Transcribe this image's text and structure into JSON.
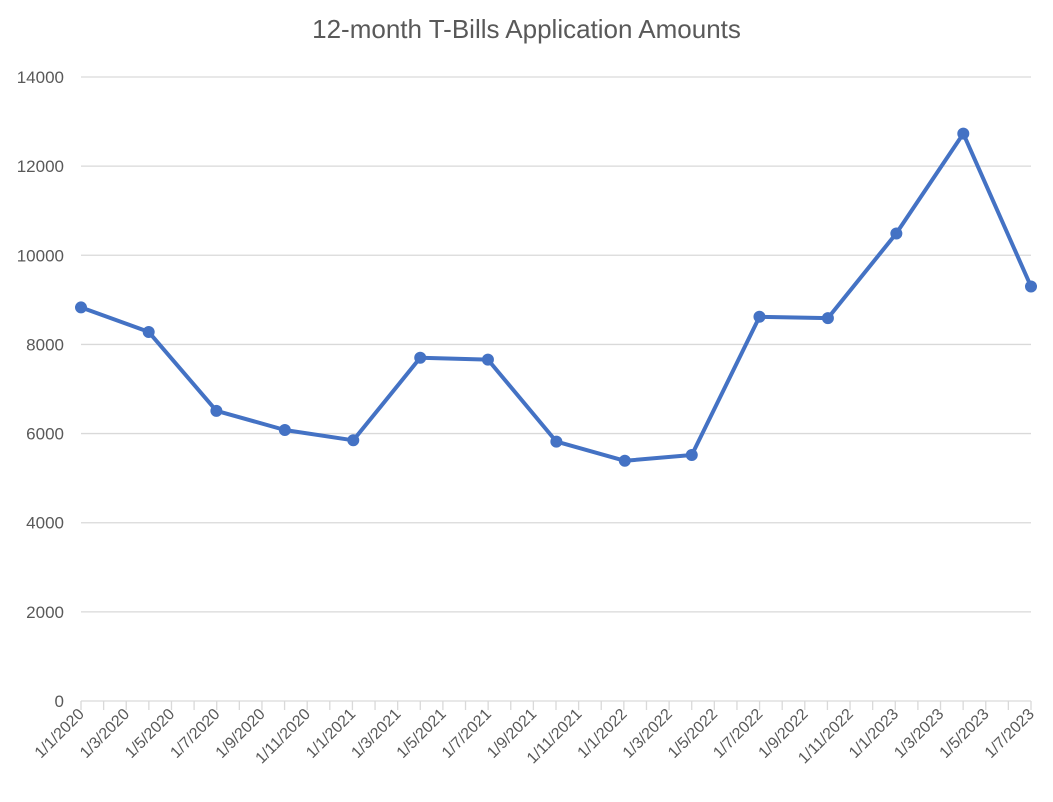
{
  "chart_data": {
    "type": "line",
    "title": "12-month T-Bills Application Amounts",
    "xlabel": "",
    "ylabel": "",
    "ylim": [
      0,
      14000
    ],
    "y_ticks": [
      "0",
      "2000",
      "4000",
      "6000",
      "8000",
      "10000",
      "12000",
      "14000"
    ],
    "x_tick_labels": [
      "1/1/2020",
      "1/3/2020",
      "1/5/2020",
      "1/7/2020",
      "1/9/2020",
      "1/11/2020",
      "1/1/2021",
      "1/3/2021",
      "1/5/2021",
      "1/7/2021",
      "1/9/2021",
      "1/11/2021",
      "1/1/2022",
      "1/3/2022",
      "1/5/2022",
      "1/7/2022",
      "1/9/2022",
      "1/11/2022",
      "1/1/2023",
      "1/3/2023",
      "1/5/2023",
      "1/7/2023"
    ],
    "x_range": [
      "2020-01-01",
      "2023-07-01"
    ],
    "grid": true,
    "legend": "none",
    "series": [
      {
        "color": "#4472C4",
        "points": [
          {
            "x": "2020-01-01",
            "y": 8830
          },
          {
            "x": "2020-04-01",
            "y": 8280
          },
          {
            "x": "2020-07-01",
            "y": 6510
          },
          {
            "x": "2020-10-01",
            "y": 6080
          },
          {
            "x": "2021-01-01",
            "y": 5850
          },
          {
            "x": "2021-04-01",
            "y": 7700
          },
          {
            "x": "2021-07-01",
            "y": 7660
          },
          {
            "x": "2021-10-01",
            "y": 5820
          },
          {
            "x": "2022-01-01",
            "y": 5390
          },
          {
            "x": "2022-04-01",
            "y": 5520
          },
          {
            "x": "2022-07-01",
            "y": 8620
          },
          {
            "x": "2022-10-01",
            "y": 8590
          },
          {
            "x": "2023-01-01",
            "y": 10490
          },
          {
            "x": "2023-04-01",
            "y": 12730
          },
          {
            "x": "2023-07-01",
            "y": 9300
          }
        ]
      }
    ]
  }
}
